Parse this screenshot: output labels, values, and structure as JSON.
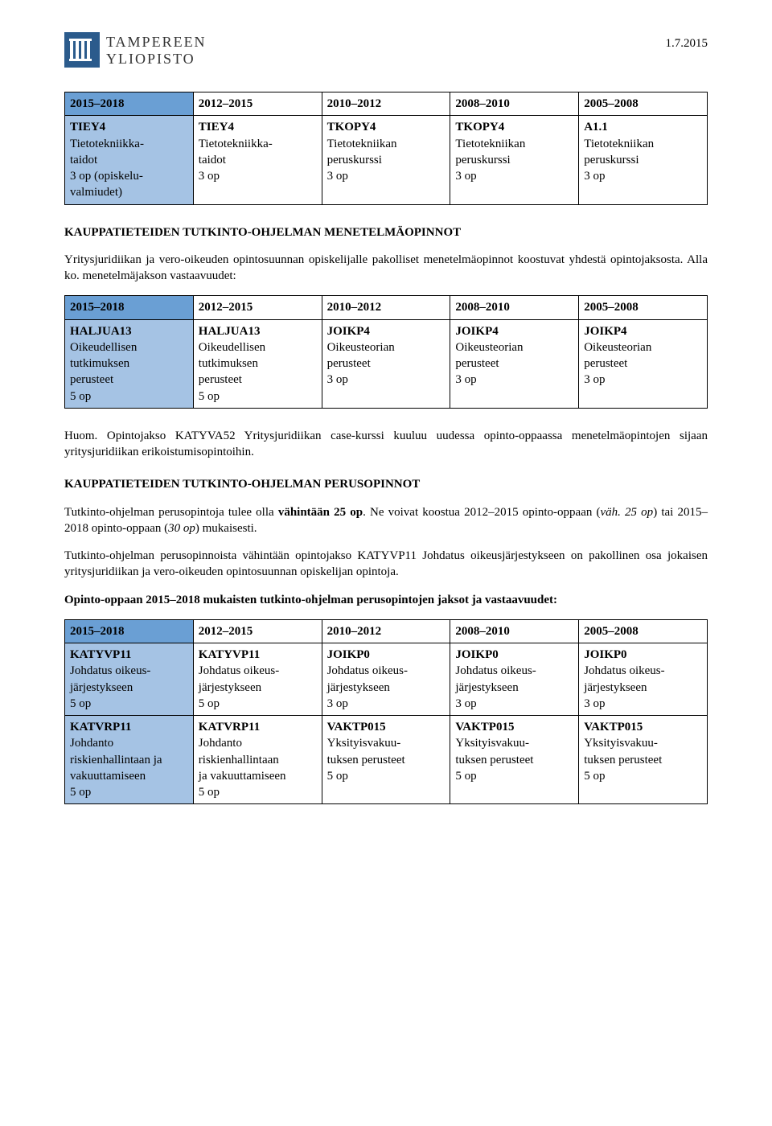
{
  "header": {
    "logo_top": "TAMPEREEN",
    "logo_bottom": "YLIOPISTO",
    "date": "1.7.2015"
  },
  "table1": {
    "headers": [
      "2015–2018",
      "2012–2015",
      "2010–2012",
      "2008–2010",
      "2005–2008"
    ],
    "row": [
      "TIEY4\nTietotekniikka-\ntaidot\n3 op (opiskelu-\nvalmiudet)",
      "TIEY4\nTietotekniikka-\ntaidot\n3 op",
      "TKOPY4\nTietotekniikan\nperuskurssi\n3 op",
      "TKOPY4\nTietotekniikan\nperuskurssi\n3 op",
      "A1.1\nTietotekniikan\nperuskurssi\n3 op"
    ]
  },
  "section1": {
    "title": "KAUPPATIETEIDEN TUTKINTO-OHJELMAN MENETELMÄOPINNOT",
    "para": "Yritysjuridiikan ja vero-oikeuden opintosuunnan opiskelijalle pakolliset menetelmäopinnot koostuvat yhdestä opintojaksosta. Alla ko. menetelmäjakson vastaavuudet:"
  },
  "table2": {
    "headers": [
      "2015–2018",
      "2012–2015",
      "2010–2012",
      "2008–2010",
      "2005–2008"
    ],
    "row": [
      "HALJUA13\nOikeudellisen\ntutkimuksen\nperusteet\n5 op",
      "HALJUA13\nOikeudellisen\ntutkimuksen\nperusteet\n5 op",
      "JOIKP4\nOikeusteorian\nperusteet\n3 op",
      "JOIKP4\nOikeusteorian\nperusteet\n3 op",
      "JOIKP4\nOikeusteorian\nperusteet\n3 op"
    ]
  },
  "section2": {
    "para_after_t2": "Huom. Opintojakso KATYVA52 Yritysjuridiikan case-kurssi kuuluu uudessa opinto-oppaassa menetelmäopintojen sijaan yritysjuridiikan erikoistumisopintoihin.",
    "title": "KAUPPATIETEIDEN TUTKINTO-OHJELMAN PERUSOPINNOT",
    "para1_pre": "Tutkinto-ohjelman perusopintoja tulee olla ",
    "para1_bold": "vähintään 25 op",
    "para1_post": ". Ne voivat koostua 2012–2015 opinto-oppaan (",
    "para1_it1": "väh. 25 op",
    "para1_mid": ") tai 2015–2018 opinto-oppaan (",
    "para1_it2": "30 op",
    "para1_end": ") mukaisesti.",
    "para2": "Tutkinto-ohjelman perusopinnoista vähintään opintojakso KATYVP11 Johdatus oikeusjärjestykseen on pakollinen osa jokaisen yritysjuridiikan ja vero-oikeuden opintosuunnan opiskelijan opintoja.",
    "para3": "Opinto-oppaan 2015–2018 mukaisten tutkinto-ohjelman perusopintojen jaksot ja vastaavuudet:"
  },
  "table3": {
    "headers": [
      "2015–2018",
      "2012–2015",
      "2010–2012",
      "2008–2010",
      "2005–2008"
    ],
    "row1": [
      "KATYVP11\nJohdatus oikeus-\njärjestykseen\n5 op",
      "KATYVP11\nJohdatus oikeus-\njärjestykseen\n5 op",
      "JOIKP0\nJohdatus oikeus-\njärjestykseen\n3 op",
      "JOIKP0\nJohdatus oikeus-\njärjestykseen\n3 op",
      "JOIKP0\nJohdatus oikeus-\njärjestykseen\n3 op"
    ],
    "row2": [
      "KATVRP11\nJohdanto\nriskienhallintaan ja\nvakuuttamiseen\n5 op",
      "KATVRP11\nJohdanto\nriskienhallintaan\nja vakuuttamiseen\n5 op",
      "VAKTP015\nYksityisvakuu-\ntuksen perusteet\n5 op",
      "VAKTP015\nYksityisvakuu-\ntuksen perusteet\n5 op",
      "VAKTP015\nYksityisvakuu-\ntuksen perusteet\n5 op"
    ]
  },
  "colors": {
    "header_blue": "#6a9fd4",
    "cell_blue": "#a5c3e4",
    "logo_bg": "#2b5b8c"
  }
}
